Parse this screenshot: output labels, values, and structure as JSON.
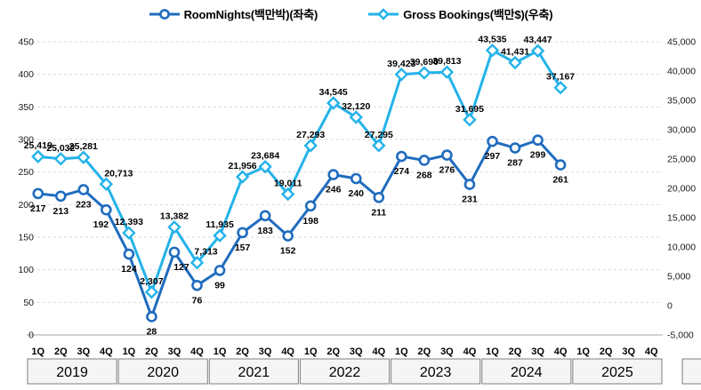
{
  "chart_data": {
    "type": "line",
    "title": "",
    "legend_position": "top",
    "grid": "horizontal-dashed",
    "years": [
      "2019",
      "2020",
      "2021",
      "2022",
      "2023",
      "2024",
      "2025"
    ],
    "quarter_labels": [
      "1Q",
      "2Q",
      "3Q",
      "4Q"
    ],
    "left_axis": {
      "min": 0,
      "max": 450,
      "step": 50,
      "tick_labels": [
        "450",
        "400",
        "350",
        "300",
        "250",
        "200",
        "150",
        "100",
        "50",
        "0"
      ]
    },
    "right_axis": {
      "min": -5000,
      "max": 45000,
      "step": 5000,
      "tick_labels": [
        "45,000",
        "40,000",
        "35,000",
        "30,000",
        "25,000",
        "20,000",
        "15,000",
        "10,000",
        "5,000",
        "0",
        "-5,000"
      ]
    },
    "series": [
      {
        "name": "RoomNights(백만박)(좌축)",
        "axis": "left",
        "marker": "circle",
        "color": "#1F6CBF",
        "values": [
          217,
          213,
          223,
          192,
          124,
          28,
          127,
          76,
          99,
          157,
          183,
          152,
          198,
          246,
          240,
          211,
          274,
          268,
          276,
          231,
          297,
          287,
          299,
          261
        ],
        "labels": [
          "217",
          "213",
          "223",
          "192",
          "124",
          "28",
          "127",
          "76",
          "99",
          "157",
          "183",
          "152",
          "198",
          "246",
          "240",
          "211",
          "274",
          "268",
          "276",
          "231",
          "297",
          "287",
          "299",
          "261"
        ]
      },
      {
        "name": "Gross Bookings(백만$)(우축)",
        "axis": "right",
        "marker": "diamond",
        "color": "#23B2EA",
        "values": [
          25419,
          25032,
          25281,
          20713,
          12393,
          2307,
          13382,
          7313,
          11935,
          21956,
          23684,
          19011,
          27293,
          34545,
          32120,
          27295,
          39423,
          39690,
          39813,
          31695,
          43535,
          41431,
          43447,
          37167
        ],
        "labels": [
          "25,419",
          "25,032",
          "25,281",
          "20,713",
          "12,393",
          "2,307",
          "13,382",
          "7,313",
          "11,935",
          "21,956",
          "23,684",
          "19,011",
          "27,293",
          "34,545",
          "32,120",
          "27,295",
          "39,423",
          "39,690",
          "39,813",
          "31,695",
          "43,535",
          "41,431",
          "43,447",
          "37,167"
        ]
      }
    ],
    "colors": {
      "gridline": "#D9D9D9",
      "axis_line": "#A6A6A6",
      "tick_text": "#1a1a1a",
      "label_text": "#000000",
      "year_band_fill": "#F5F5F5",
      "year_band_border": "#7F7F7F"
    }
  }
}
